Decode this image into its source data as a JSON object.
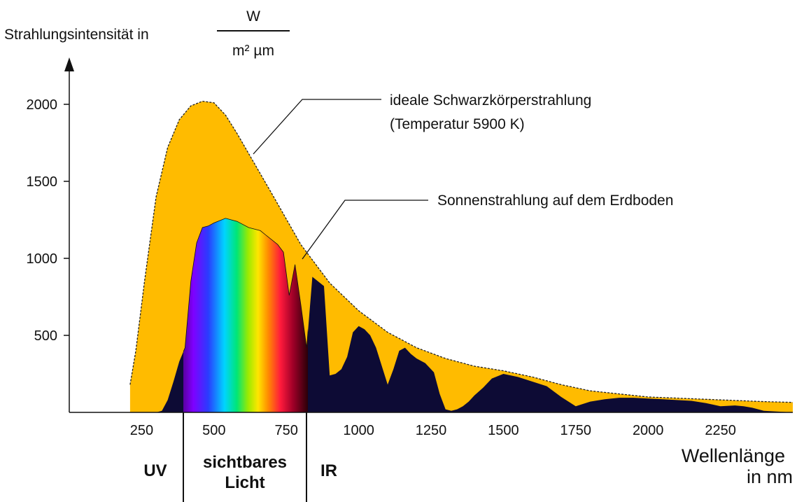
{
  "chart_data": {
    "type": "area",
    "title": "",
    "ylabel": "Strahlungsintensität in",
    "yunit_numerator": "W",
    "yunit_denominator": "m² µm",
    "xlabel_line1": "Wellenlänge",
    "xlabel_line2": "in nm",
    "xlim": [
      0,
      2500
    ],
    "ylim": [
      0,
      2150
    ],
    "x_ticks": [
      "250",
      "500",
      "750",
      "1000",
      "1250",
      "1500",
      "1750",
      "2000",
      "2250"
    ],
    "y_ticks": [
      "500",
      "1000",
      "1500",
      "2000"
    ],
    "region_labels": {
      "uv": "UV",
      "visible_line1": "sichtbares",
      "visible_line2": "Licht",
      "ir": "IR"
    },
    "region_bounds_nm": [
      380,
      780
    ],
    "annotations": {
      "blackbody_line1": "ideale Schwarzkörperstrahlung",
      "blackbody_line2": "(Temperatur 5900 K)",
      "ground": "Sonnenstrahlung auf dem Erdboden"
    },
    "series": [
      {
        "name": "ideale Schwarzkörperstrahlung (Temperatur 5900 K)",
        "color": "#FFBB00",
        "x": [
          210,
          230,
          260,
          300,
          340,
          380,
          420,
          460,
          500,
          540,
          580,
          620,
          700,
          800,
          900,
          1000,
          1100,
          1200,
          1300,
          1400,
          1500,
          1600,
          1700,
          1800,
          1900,
          2000,
          2200,
          2400,
          2500
        ],
        "y": [
          180,
          400,
          850,
          1400,
          1720,
          1900,
          1990,
          2020,
          2010,
          1930,
          1810,
          1680,
          1420,
          1090,
          840,
          660,
          520,
          420,
          350,
          300,
          270,
          230,
          180,
          140,
          120,
          100,
          85,
          70,
          65
        ]
      },
      {
        "name": "Sonnenstrahlung auf dem Erdboden",
        "color": "#0D0B35",
        "x": [
          300,
          320,
          340,
          360,
          380,
          400,
          420,
          440,
          460,
          480,
          500,
          540,
          580,
          620,
          660,
          680,
          700,
          720,
          740,
          760,
          780,
          800,
          820,
          840,
          860,
          880,
          900,
          920,
          940,
          960,
          980,
          1000,
          1020,
          1040,
          1060,
          1080,
          1100,
          1120,
          1140,
          1160,
          1180,
          1200,
          1230,
          1260,
          1280,
          1300,
          1320,
          1340,
          1360,
          1380,
          1400,
          1430,
          1460,
          1500,
          1550,
          1600,
          1650,
          1700,
          1750,
          1800,
          1850,
          1900,
          1950,
          2000,
          2050,
          2100,
          2150,
          2200,
          2250,
          2300,
          2330,
          2360,
          2400,
          2450,
          2500
        ],
        "y": [
          0,
          10,
          80,
          200,
          330,
          420,
          850,
          1100,
          1200,
          1210,
          1230,
          1260,
          1240,
          1200,
          1180,
          1150,
          1120,
          1090,
          1040,
          760,
          960,
          700,
          420,
          880,
          850,
          820,
          240,
          250,
          280,
          360,
          520,
          560,
          540,
          500,
          420,
          300,
          180,
          280,
          400,
          420,
          380,
          350,
          320,
          260,
          120,
          20,
          10,
          20,
          40,
          70,
          110,
          160,
          220,
          250,
          230,
          200,
          170,
          100,
          40,
          70,
          85,
          95,
          95,
          90,
          85,
          80,
          75,
          60,
          40,
          45,
          40,
          30,
          10,
          5,
          0
        ]
      }
    ]
  }
}
